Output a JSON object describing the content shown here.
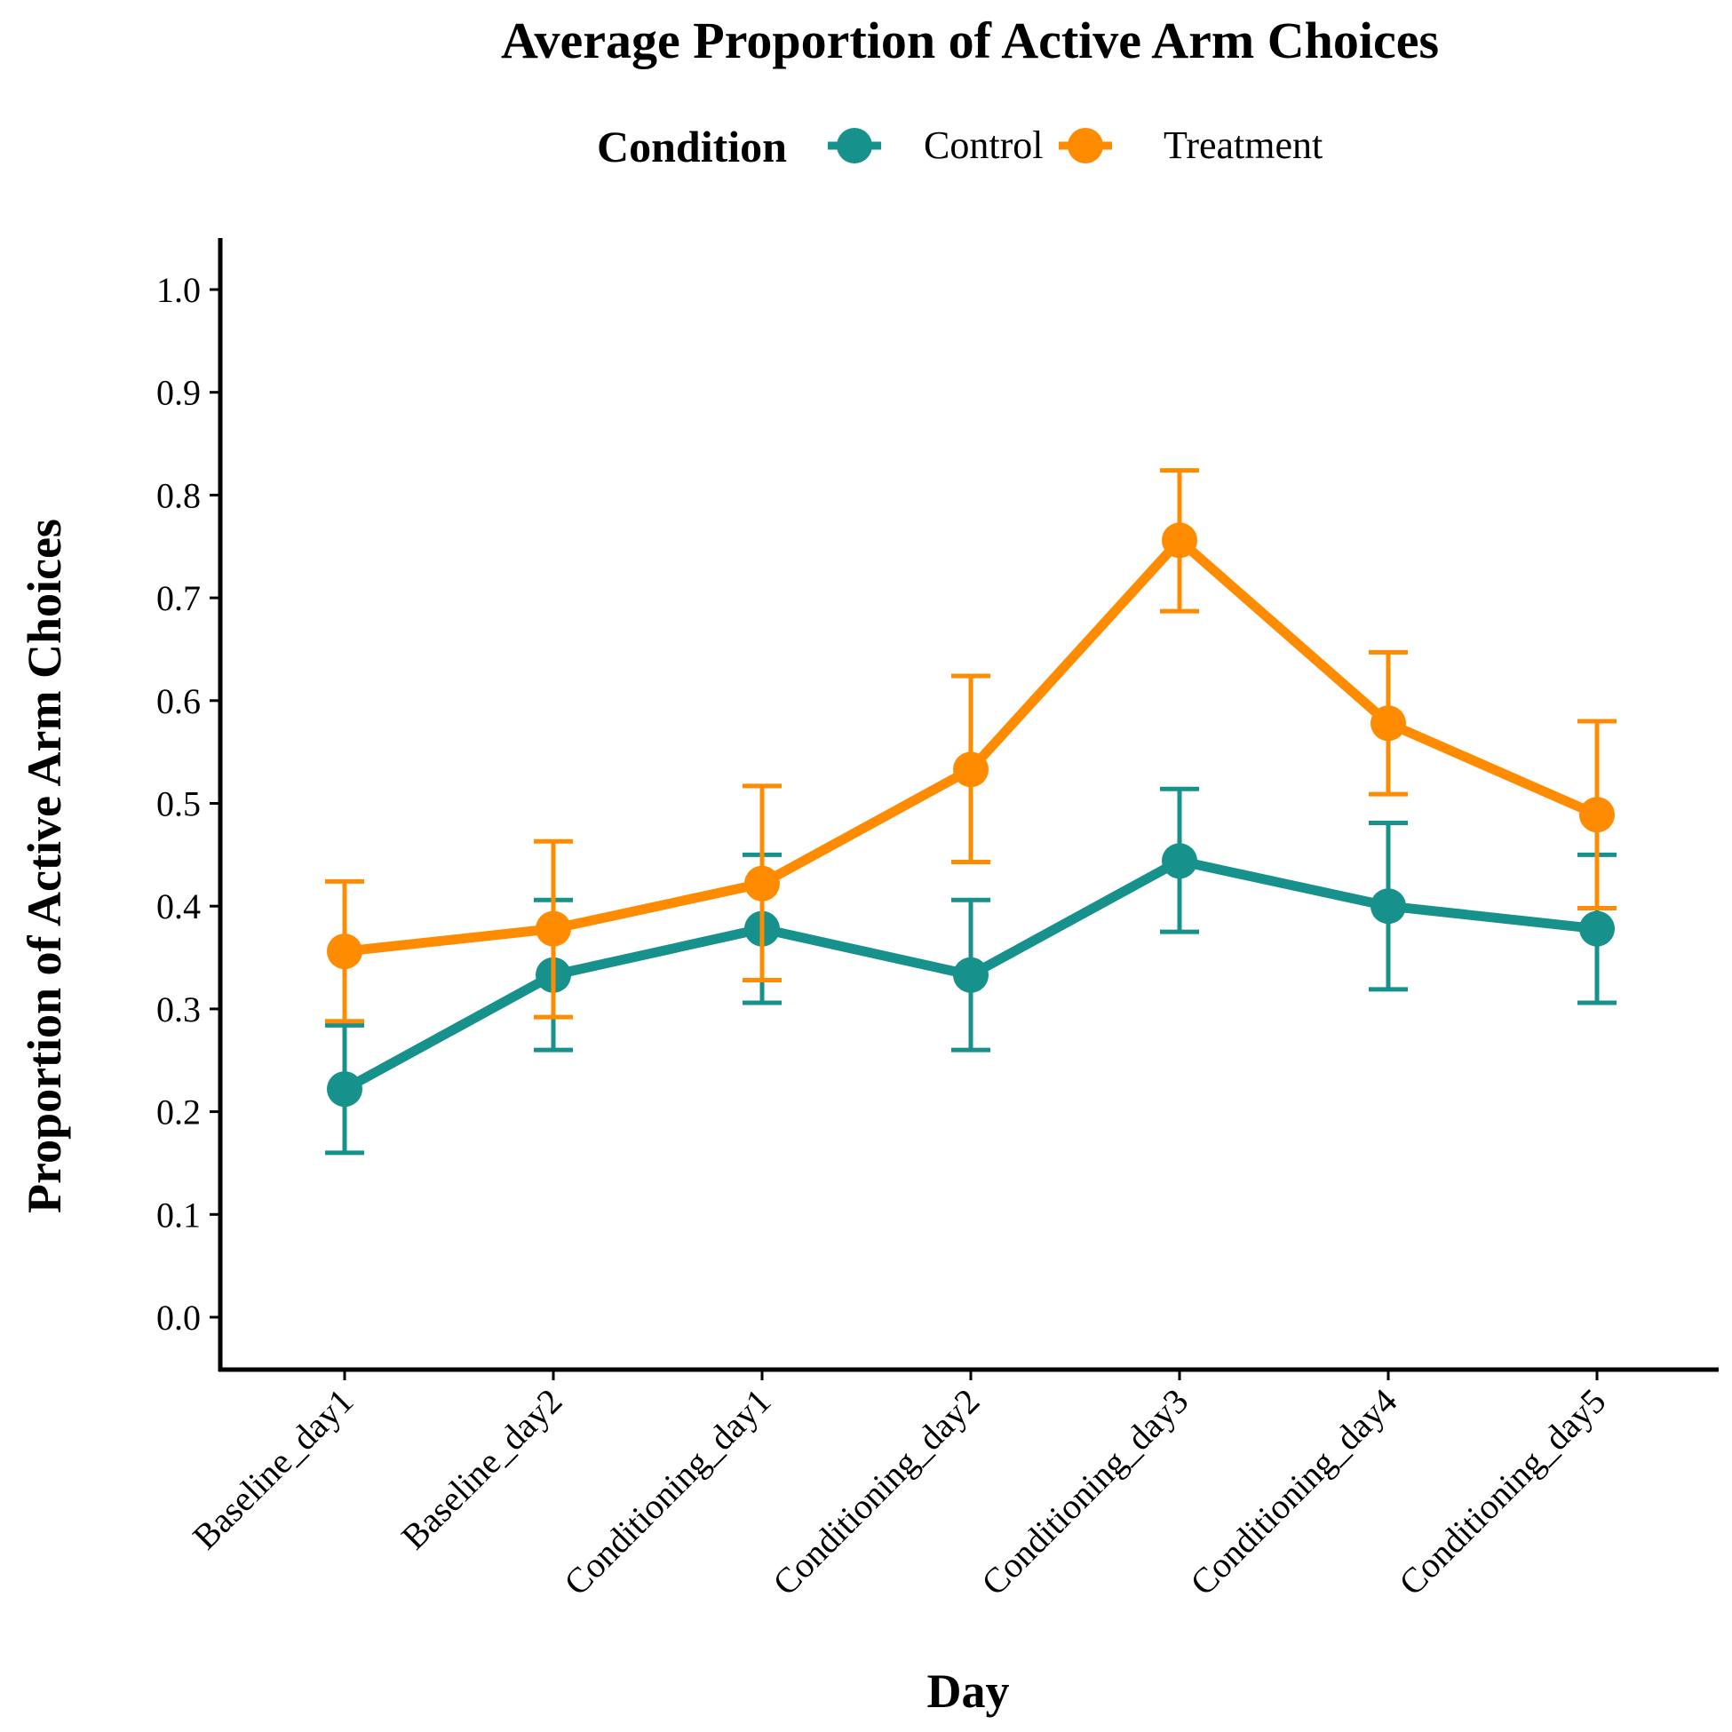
{
  "chart_data": {
    "type": "line",
    "title": "Average Proportion of Active Arm Choices",
    "xlabel": "Day",
    "ylabel": "Proportion of Active Arm Choices",
    "legend": {
      "title": "Condition",
      "position": "top"
    },
    "categories": [
      "Baseline_day1",
      "Baseline_day2",
      "Conditioning_day1",
      "Conditioning_day2",
      "Conditioning_day3",
      "Conditioning_day4",
      "Conditioning_day5"
    ],
    "ylim": [
      0,
      1.0
    ],
    "yticks": [
      "0.0",
      "0.1",
      "0.2",
      "0.3",
      "0.4",
      "0.5",
      "0.6",
      "0.7",
      "0.8",
      "0.9",
      "1.0"
    ],
    "grid": false,
    "series": [
      {
        "name": "Control",
        "color": "#17918c",
        "values": [
          0.222,
          0.333,
          0.378,
          0.333,
          0.444,
          0.4,
          0.378
        ],
        "error_low": [
          0.16,
          0.26,
          0.306,
          0.26,
          0.375,
          0.319,
          0.306
        ],
        "error_high": [
          0.284,
          0.406,
          0.45,
          0.406,
          0.514,
          0.481,
          0.45
        ]
      },
      {
        "name": "Treatment",
        "color": "#ff8c00",
        "values": [
          0.356,
          0.378,
          0.422,
          0.533,
          0.756,
          0.578,
          0.489
        ],
        "error_low": [
          0.288,
          0.292,
          0.328,
          0.443,
          0.687,
          0.509,
          0.398
        ],
        "error_high": [
          0.424,
          0.463,
          0.517,
          0.624,
          0.824,
          0.647,
          0.58
        ]
      }
    ]
  }
}
